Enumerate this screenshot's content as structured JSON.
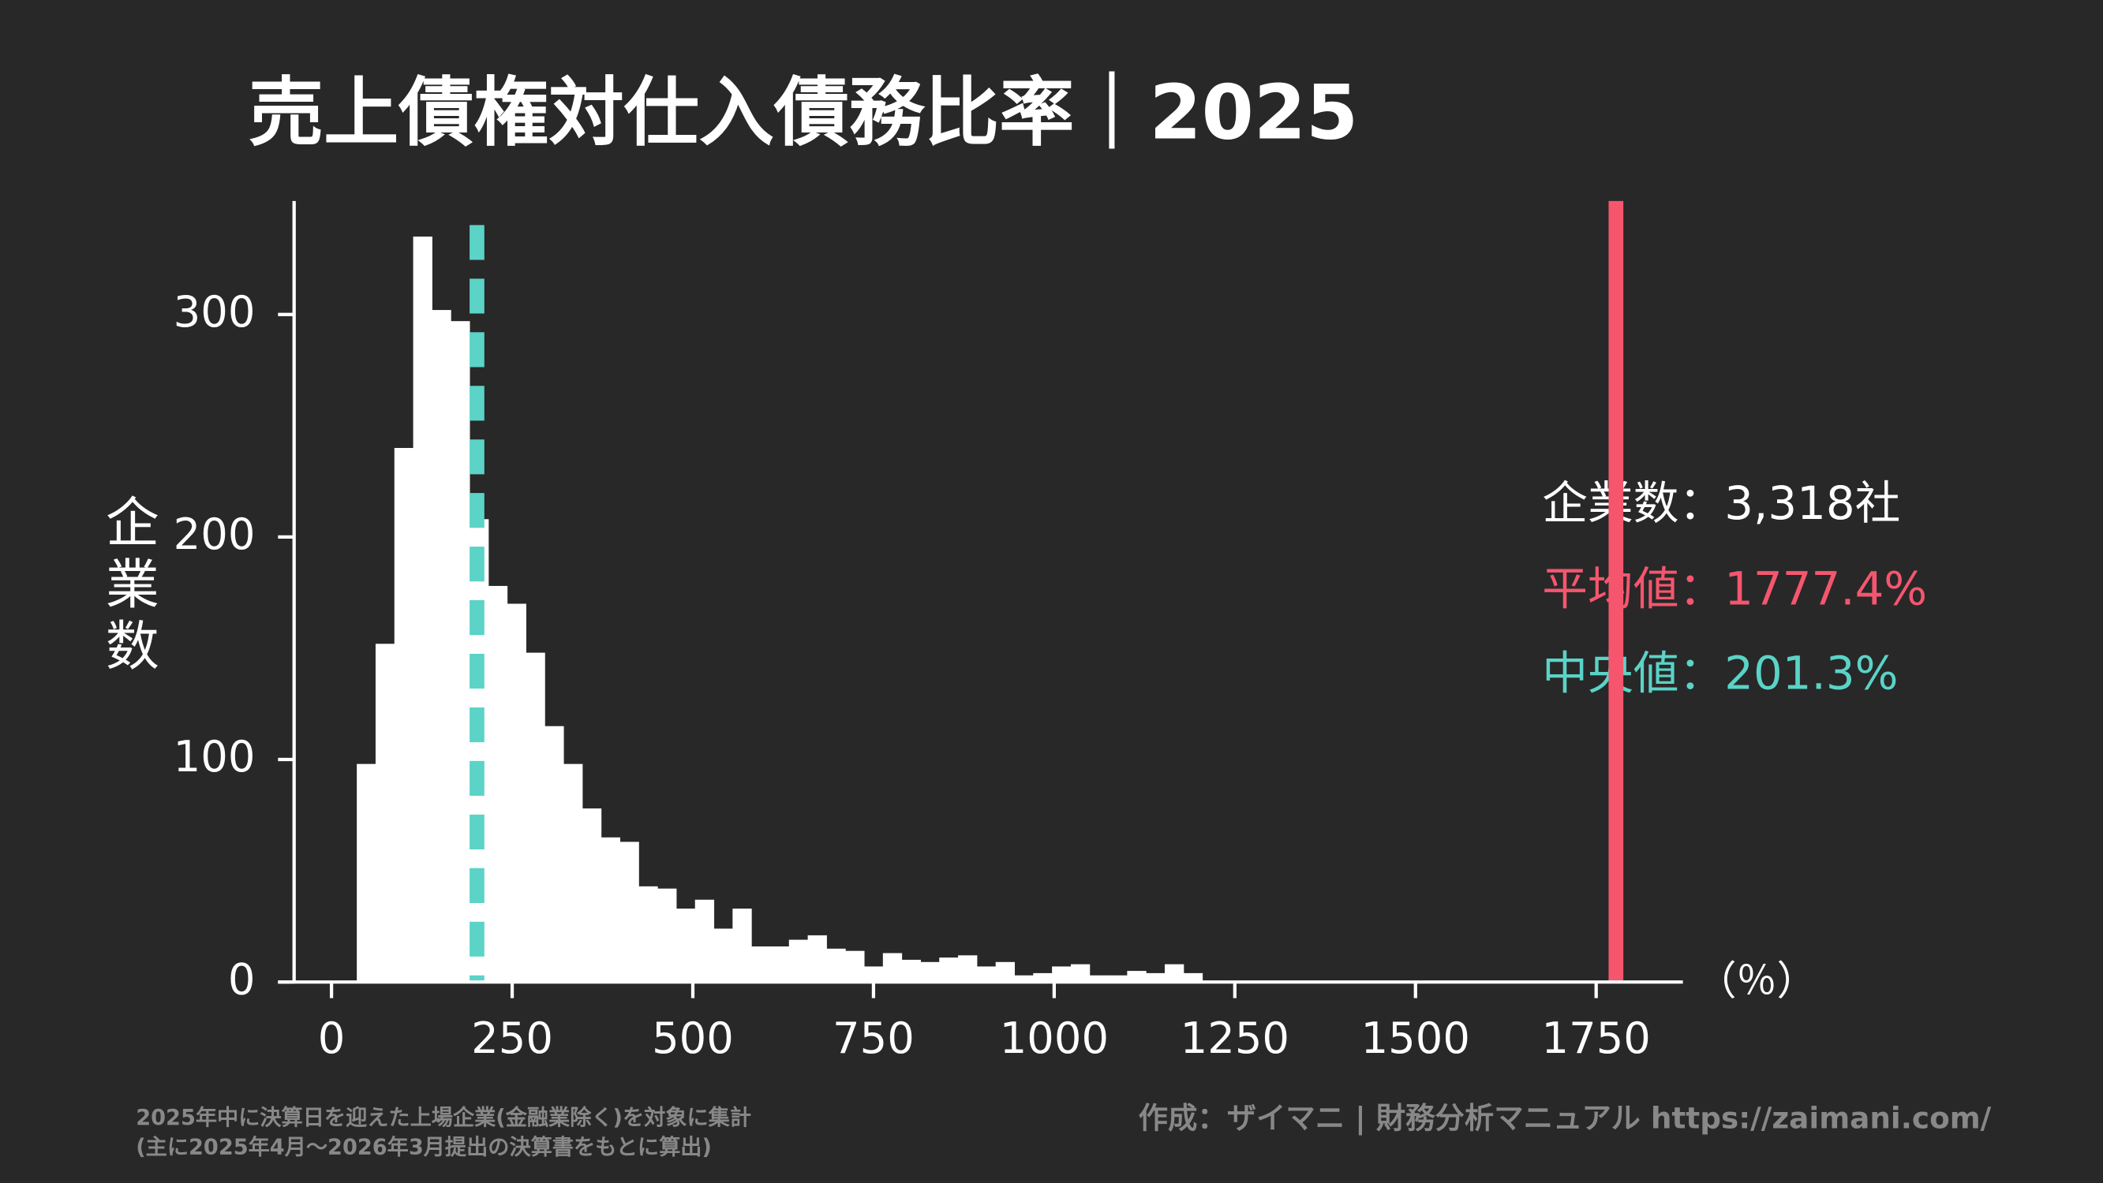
{
  "chart_data": {
    "type": "histogram",
    "title": "売上債権対仕入債務比率｜2025",
    "y_label": "企業数",
    "x_unit": "（％）",
    "bins": [
      35,
      61,
      87,
      113,
      139,
      165,
      191,
      217,
      243,
      269,
      295,
      321,
      347,
      373,
      399,
      425,
      451,
      477,
      503,
      529,
      555,
      581,
      607,
      633,
      659,
      685,
      711,
      737,
      763,
      789,
      815,
      841,
      867,
      893,
      919,
      945,
      971,
      997,
      1023,
      1049,
      1075,
      1101,
      1127,
      1153,
      1179,
      1205
    ],
    "values": [
      98,
      152,
      240,
      335,
      302,
      297,
      208,
      178,
      170,
      148,
      115,
      98,
      78,
      65,
      63,
      43,
      42,
      33,
      37,
      24,
      33,
      16,
      16,
      19,
      21,
      15,
      14,
      7,
      13,
      10,
      9,
      11,
      12,
      7,
      9,
      3,
      4,
      7,
      8,
      3,
      3,
      5,
      4,
      8,
      4
    ],
    "color": "#ffffff",
    "xlim": [
      -74,
      1870
    ],
    "ylim": [
      0,
      351
    ],
    "xticks": [
      0,
      250,
      500,
      750,
      1000,
      1250,
      1500,
      1750
    ],
    "yticks": [
      0,
      100,
      200,
      300
    ],
    "count_label": "企業数：3,318社",
    "mean": {
      "value": 1777.4,
      "label": "平均値：1777.4%",
      "color": "#f5566e"
    },
    "median": {
      "value": 201.3,
      "label": "中央値：201.3%",
      "color": "#5bd3c7"
    },
    "note_1": "2025年中に決算日を迎えた上場企業(金融業除く)を対象に集計",
    "note_2": "(主に2025年4月～2026年3月提出の決算書をもとに算出)",
    "credit": "作成：ザイマニ | 財務分析マニュアル https://zaimani.com/"
  }
}
